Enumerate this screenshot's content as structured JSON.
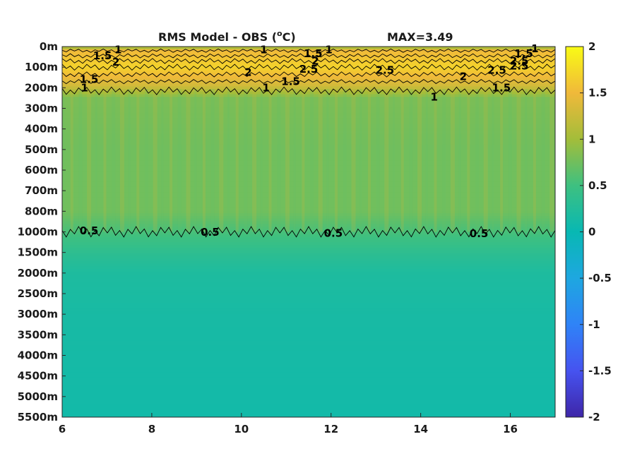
{
  "chart_data": {
    "type": "heatmap",
    "title": "RMS Model - OBS (",
    "title_unit_sup": "o",
    "title_unit_end": "C)",
    "max_label": "MAX=3.49",
    "x": {
      "min": 6,
      "max": 17,
      "ticks": [
        6,
        8,
        10,
        12,
        14,
        16
      ]
    },
    "depth_ticks": [
      "0m",
      "100m",
      "200m",
      "300m",
      "400m",
      "500m",
      "600m",
      "700m",
      "800m",
      "1000m",
      "1500m",
      "2000m",
      "2500m",
      "3000m",
      "3500m",
      "4000m",
      "4500m",
      "5000m",
      "5500m"
    ],
    "depth_values": [
      0,
      100,
      200,
      300,
      400,
      500,
      600,
      700,
      800,
      1000,
      1500,
      2000,
      2500,
      3000,
      3500,
      4000,
      4500,
      5000,
      5500
    ],
    "colorbar": {
      "min": -2,
      "max": 2,
      "ticks": [
        "2",
        "1.5",
        "1",
        "0.5",
        "0",
        "-0.5",
        "-1",
        "-1.5",
        "-2"
      ],
      "colormap": "parula"
    },
    "field_profile": [
      {
        "depth": 0,
        "value": 0.9
      },
      {
        "depth": 20,
        "value": 1.5
      },
      {
        "depth": 100,
        "value": 1.7
      },
      {
        "depth": 190,
        "value": 1.3
      },
      {
        "depth": 250,
        "value": 0.8
      },
      {
        "depth": 500,
        "value": 0.75
      },
      {
        "depth": 800,
        "value": 0.75
      },
      {
        "depth": 1000,
        "value": 0.55
      },
      {
        "depth": 1500,
        "value": 0.35
      },
      {
        "depth": 2000,
        "value": 0.2
      },
      {
        "depth": 3000,
        "value": 0.15
      },
      {
        "depth": 5500,
        "value": 0.1
      }
    ],
    "contour_levels": [
      {
        "level": "1",
        "depth": 215,
        "amp": 18
      },
      {
        "level": "0.5",
        "depth": 1000,
        "amp": 25
      },
      {
        "level": "1",
        "depth": 20,
        "amp": 8
      },
      {
        "level": "1.5",
        "depth": 45,
        "amp": 10
      },
      {
        "level": "2",
        "depth": 70,
        "amp": 12
      },
      {
        "level": "2.5",
        "depth": 100,
        "amp": 14
      },
      {
        "level": "2",
        "depth": 135,
        "amp": 12
      },
      {
        "level": "1.5",
        "depth": 170,
        "amp": 10
      }
    ],
    "contour_labels": [
      {
        "text": "1",
        "x": 7.25,
        "depth": 15
      },
      {
        "text": "1.5",
        "x": 6.9,
        "depth": 45
      },
      {
        "text": "2",
        "x": 7.2,
        "depth": 75
      },
      {
        "text": "1.5",
        "x": 6.6,
        "depth": 160
      },
      {
        "text": "1",
        "x": 6.5,
        "depth": 200
      },
      {
        "text": "1",
        "x": 10.5,
        "depth": 15
      },
      {
        "text": "1.5",
        "x": 11.6,
        "depth": 35
      },
      {
        "text": "1",
        "x": 11.95,
        "depth": 15
      },
      {
        "text": "2",
        "x": 11.65,
        "depth": 70
      },
      {
        "text": "2.5",
        "x": 11.5,
        "depth": 110
      },
      {
        "text": "2",
        "x": 10.15,
        "depth": 125
      },
      {
        "text": "1.5",
        "x": 11.1,
        "depth": 170
      },
      {
        "text": "1",
        "x": 10.55,
        "depth": 200
      },
      {
        "text": "2.5",
        "x": 13.2,
        "depth": 115
      },
      {
        "text": "2",
        "x": 14.95,
        "depth": 145
      },
      {
        "text": "1",
        "x": 14.3,
        "depth": 245
      },
      {
        "text": "2.5",
        "x": 15.7,
        "depth": 115
      },
      {
        "text": "1.5",
        "x": 15.8,
        "depth": 200
      },
      {
        "text": "1.5",
        "x": 16.3,
        "depth": 35
      },
      {
        "text": "1",
        "x": 16.55,
        "depth": 10
      },
      {
        "text": "2.5",
        "x": 16.2,
        "depth": 70
      },
      {
        "text": "2.5",
        "x": 16.2,
        "depth": 95
      },
      {
        "text": "0.5",
        "x": 6.6,
        "depth": 990
      },
      {
        "text": "0.5",
        "x": 9.3,
        "depth": 1010
      },
      {
        "text": "0.5",
        "x": 12.05,
        "depth": 1030
      },
      {
        "text": "0.5",
        "x": 15.3,
        "depth": 1040
      }
    ]
  }
}
